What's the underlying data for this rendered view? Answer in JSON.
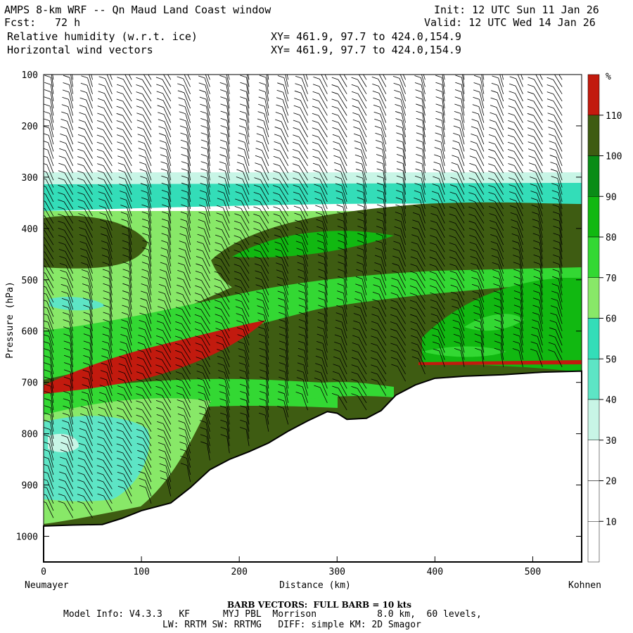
{
  "header": {
    "title": "AMPS 8-km WRF -- Qn Maud Land Coast window",
    "fcst_label": "Fcst:",
    "fcst_value": "72 h",
    "init": "Init: 12 UTC Sun 11 Jan 26",
    "valid": "Valid: 12 UTC Wed 14 Jan 26",
    "field1": "Relative humidity (w.r.t. ice)",
    "field2": "Horizontal wind vectors",
    "xy1": "XY= 461.9, 97.7 to 424.0,154.9",
    "xy2": "XY= 461.9, 97.7 to 424.0,154.9"
  },
  "footer": {
    "barb_note": "BARB VECTORS:  FULL BARB = 10 kts",
    "model_line1": "Model Info: V4.3.3   KF      MYJ PBL  Morrison           8.0 km,  60 levels,",
    "model_line2": "LW: RRTM SW: RRTMG   DIFF: simple KM: 2D Smagor"
  },
  "chart_data": {
    "type": "heatmap",
    "title": "Relative humidity (w.r.t. ice) cross-section with horizontal wind vectors",
    "xlabel": "Distance (km)",
    "ylabel": "Pressure (hPa)",
    "xlim": [
      0,
      550
    ],
    "ylim": [
      1050,
      100
    ],
    "x_ticks": [
      0,
      100,
      200,
      300,
      400,
      500
    ],
    "y_ticks": [
      100,
      200,
      300,
      400,
      500,
      600,
      700,
      800,
      900,
      1000
    ],
    "x_start_label": "Neumayer",
    "x_end_label": "Kohnen",
    "colorbar": {
      "unit": "%",
      "levels": [
        10,
        20,
        30,
        40,
        50,
        60,
        70,
        80,
        90,
        100,
        110
      ],
      "colors": [
        "#ffffff",
        "#ffffff",
        "#ffffff",
        "#c8f5e6",
        "#5de5c5",
        "#33ddb8",
        "#88e868",
        "#33d833",
        "#11b811",
        "#098c16",
        "#3e5c12",
        "#c21a0e"
      ]
    },
    "terrain_surface_hpa": [
      [
        0,
        980
      ],
      [
        30,
        978
      ],
      [
        60,
        977
      ],
      [
        80,
        965
      ],
      [
        100,
        950
      ],
      [
        130,
        935
      ],
      [
        150,
        905
      ],
      [
        170,
        870
      ],
      [
        190,
        850
      ],
      [
        210,
        835
      ],
      [
        230,
        818
      ],
      [
        250,
        795
      ],
      [
        270,
        775
      ],
      [
        290,
        757
      ],
      [
        300,
        760
      ],
      [
        310,
        772
      ],
      [
        330,
        770
      ],
      [
        345,
        755
      ],
      [
        360,
        725
      ],
      [
        380,
        705
      ],
      [
        400,
        692
      ],
      [
        430,
        688
      ],
      [
        470,
        685
      ],
      [
        510,
        680
      ],
      [
        550,
        678
      ]
    ]
  }
}
